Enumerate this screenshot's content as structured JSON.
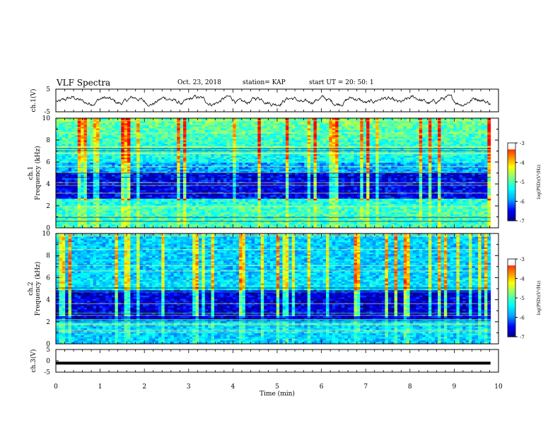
{
  "header": {
    "title": "VLF Spectra",
    "date": "Oct. 23, 2018",
    "station": "station= KAP",
    "start": "start  UT  =   20: 50: 1"
  },
  "colors": {
    "bg_dark": "#00008c",
    "colormap": [
      "#000080",
      "#0000ff",
      "#00aaff",
      "#00ffff",
      "#7fff7f",
      "#ffff00",
      "#ff8000",
      "#ff0000",
      "#ffffff"
    ]
  },
  "chart_data": [
    {
      "type": "line",
      "panel": "ch1-waveform",
      "ylabel": "ch.1(V)",
      "ylim": [
        -5,
        5
      ],
      "yticks": [
        5,
        -5
      ],
      "xlim": [
        0,
        10
      ],
      "description_values": "noisy signal oscillating roughly between -1.5 and 1.5 V over ~9.8 min"
    },
    {
      "type": "heatmap",
      "panel": "ch1-spectrogram",
      "ylabel": "ch.1\nFrequency (kHz)",
      "ylabel_lines": [
        "ch.1",
        "Frequency  (kHz)"
      ],
      "ylim": [
        0,
        10
      ],
      "yticks": [
        0,
        2,
        4,
        6,
        8,
        10
      ],
      "xlim": [
        0,
        10
      ],
      "colorbar": {
        "label": "log(PSD)(V²/Hz)",
        "range": [
          -7,
          -3
        ],
        "ticks": [
          -3,
          -4,
          -5,
          -6,
          -7
        ]
      }
    },
    {
      "type": "heatmap",
      "panel": "ch2-spectrogram",
      "ylabel_lines": [
        "ch.2",
        "Frequency  (kHz)"
      ],
      "ylim": [
        0,
        10
      ],
      "yticks": [
        0,
        2,
        4,
        6,
        8,
        10
      ],
      "xlim": [
        0,
        10
      ],
      "colorbar": {
        "label": "log(PSD)(V²/Hz)",
        "range": [
          -7,
          -3
        ],
        "ticks": [
          -3,
          -4,
          -5,
          -6,
          -7
        ]
      }
    },
    {
      "type": "line",
      "panel": "ch3-waveform",
      "ylabel": "ch.3(V)",
      "ylim": [
        -5,
        5
      ],
      "yticks": [
        5,
        0,
        -5
      ],
      "ytick_labels": [
        "5",
        "0",
        "-5"
      ],
      "xlim": [
        0,
        10
      ],
      "xlabel": "Time  (min)",
      "xticks": [
        0,
        1,
        2,
        3,
        4,
        5,
        6,
        7,
        8,
        9,
        10
      ],
      "constant_value": -1
    }
  ]
}
